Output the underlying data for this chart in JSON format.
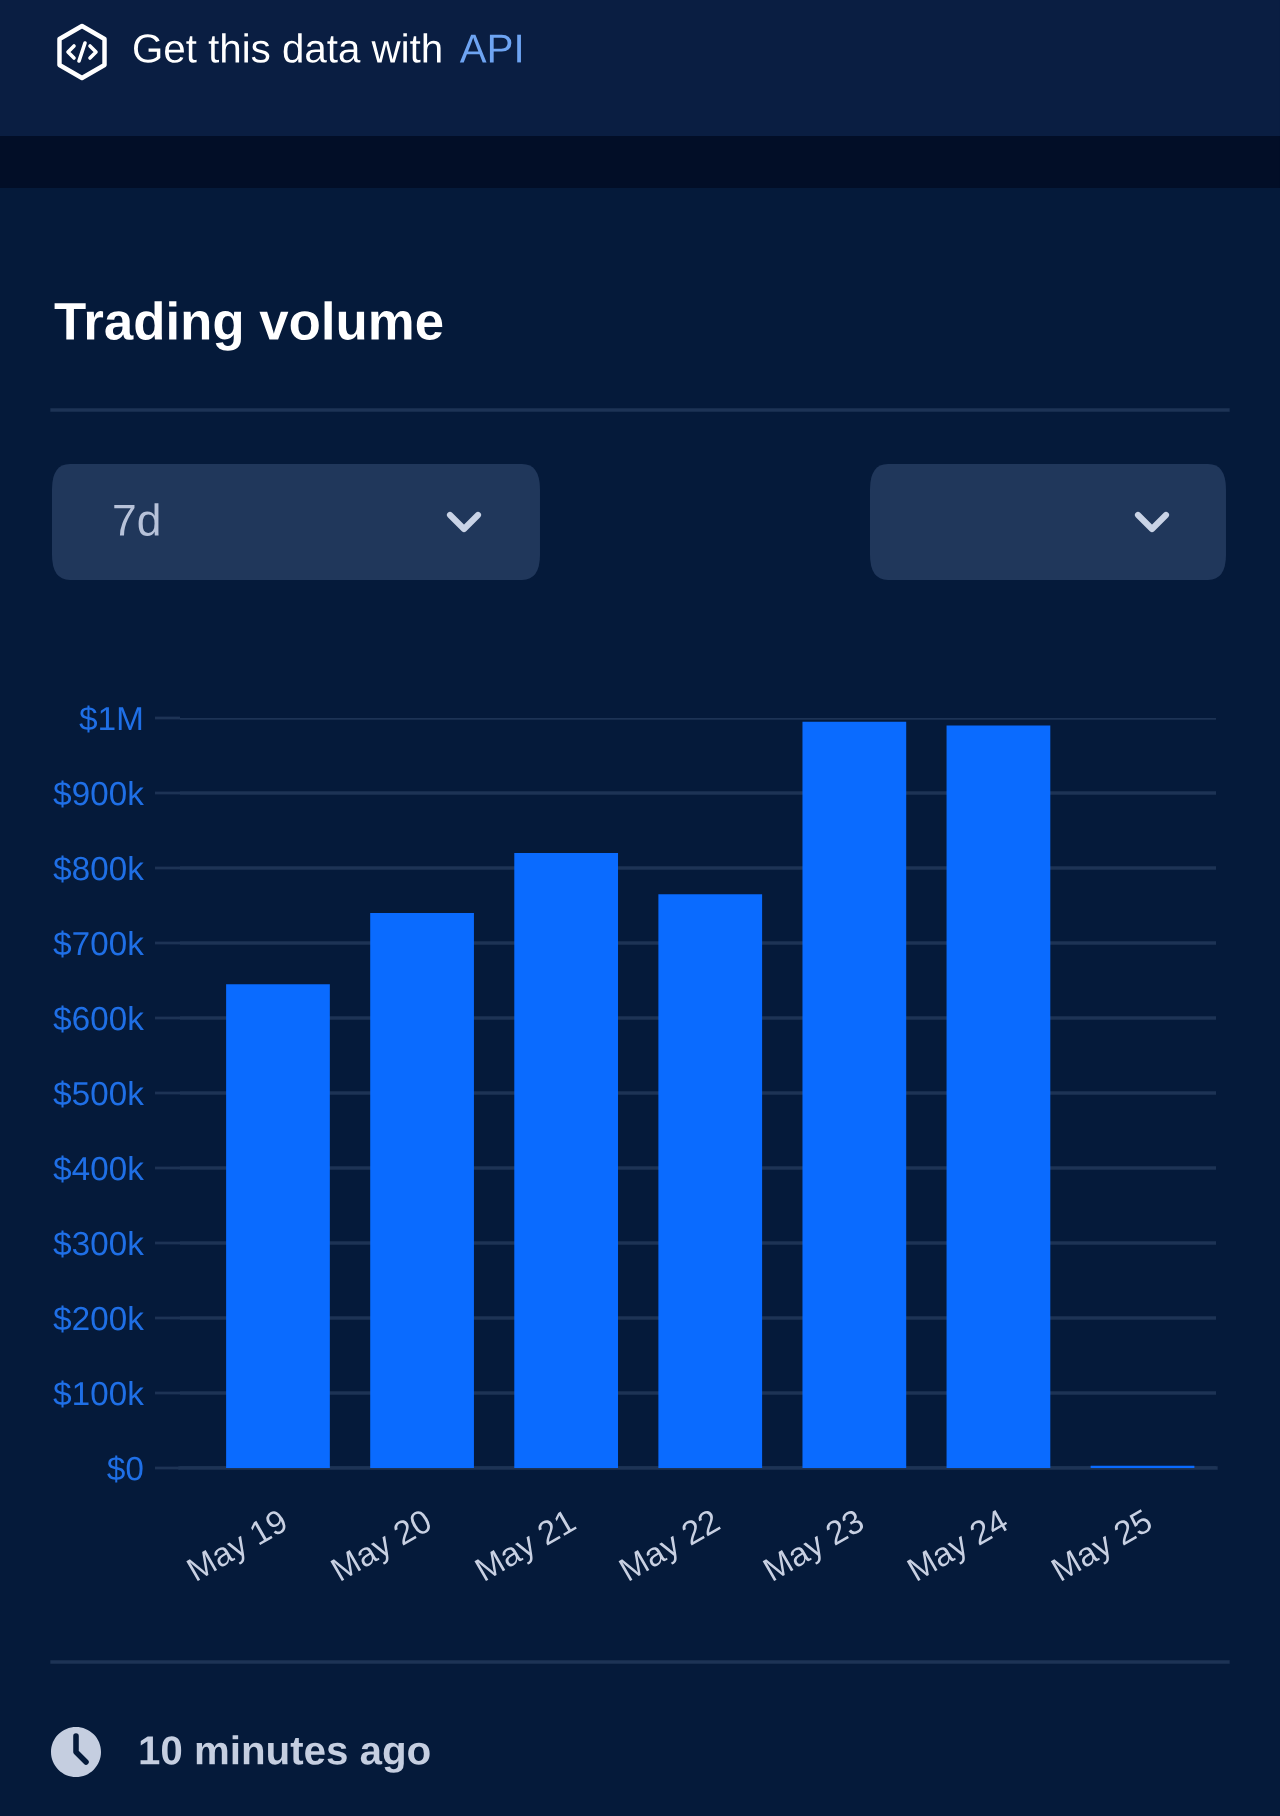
{
  "chart_data": {
    "type": "bar",
    "title": "Trading volume",
    "categories": [
      "May 19",
      "May 20",
      "May 21",
      "May 22",
      "May 23",
      "May 24",
      "May 25"
    ],
    "values": [
      645000,
      740000,
      820000,
      765000,
      995000,
      990000,
      3000
    ],
    "color": "#0a6bff",
    "ylim": [
      0,
      1000000
    ],
    "yticks": [
      {
        "value": 0,
        "label": "$0"
      },
      {
        "value": 100000,
        "label": "$100k"
      },
      {
        "value": 200000,
        "label": "$200k"
      },
      {
        "value": 300000,
        "label": "$300k"
      },
      {
        "value": 400000,
        "label": "$400k"
      },
      {
        "value": 500000,
        "label": "$500k"
      },
      {
        "value": 600000,
        "label": "$600k"
      },
      {
        "value": 700000,
        "label": "$700k"
      },
      {
        "value": 800000,
        "label": "$800k"
      },
      {
        "value": 900000,
        "label": "$900k"
      },
      {
        "value": 1000000,
        "label": "$1M"
      }
    ],
    "grid": "y",
    "annotations": [
      "Get this data with",
      "API",
      "7d",
      "10 minutes ago"
    ]
  }
}
